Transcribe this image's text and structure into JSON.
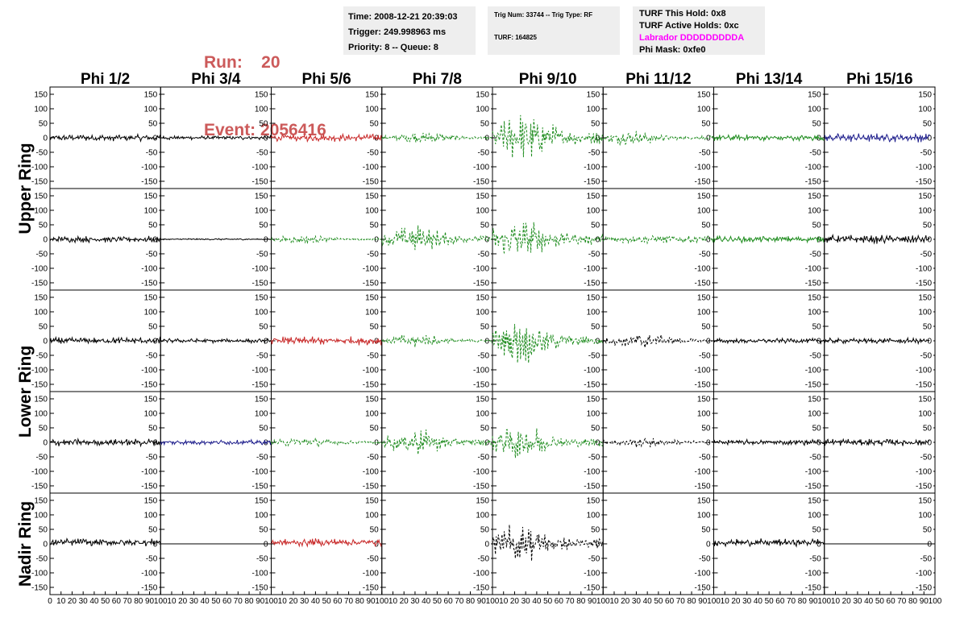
{
  "header": {
    "run_line": "Run:    20",
    "event_line": "Event: 2056416",
    "time_line": "Time: 2008-12-21 20:39:03",
    "trigger_line": "Trigger: 249.998963 ms",
    "priority_line": "Priority: 8 -- Queue: 8",
    "trig_line": "Trig Num: 33744 -- Trig Type: RF",
    "turf_line": "TURF: 164825",
    "turf_hold_line": "TURF This Hold: 0x8",
    "turf_active_line": "TURF Active Holds: 0xc",
    "labrador_line": "Labrador DDDDDDDDDA",
    "phi_mask_line": "Phi Mask: 0xfe0",
    "run_color": "#cc5a5a",
    "labrador_color": "#ff00ff"
  },
  "chart_data": {
    "type": "line",
    "columns": [
      "Phi 1/2",
      "Phi 3/4",
      "Phi 5/6",
      "Phi 7/8",
      "Phi 9/10",
      "Phi 11/12",
      "Phi 13/14",
      "Phi 15/16"
    ],
    "rows": [
      "Upper Ring",
      "Upper Ring",
      "Lower Ring",
      "Lower Ring",
      "Nadir Ring"
    ],
    "row_labels": [
      {
        "text": "Upper Ring",
        "rows": [
          0,
          1
        ]
      },
      {
        "text": "Lower Ring",
        "rows": [
          2,
          3
        ]
      },
      {
        "text": "Nadir Ring",
        "rows": [
          4,
          4
        ]
      }
    ],
    "ylim": [
      -175,
      175
    ],
    "yticks": [
      -150,
      -100,
      -50,
      0,
      50,
      100,
      150
    ],
    "xlim": [
      0,
      100
    ],
    "xticks": [
      0,
      10,
      20,
      30,
      40,
      50,
      60,
      70,
      80,
      90,
      100
    ],
    "grid": false,
    "colors": {
      "black": "#000000",
      "red": "#c82828",
      "green": "#1e8c1e",
      "blue": "#1e1e8c"
    },
    "panels": [
      [
        {
          "color": "black",
          "style": "solid",
          "amp": 12,
          "profile": "flat"
        },
        {
          "color": "black",
          "style": "solid",
          "amp": 8,
          "profile": "flat"
        },
        {
          "color": "red",
          "style": "solid",
          "amp": 14,
          "profile": "flat"
        },
        {
          "color": "green",
          "style": "dashed",
          "amp": 24,
          "profile": "pulse",
          "center": 40
        },
        {
          "color": "green",
          "style": "dashed",
          "amp": 95,
          "profile": "pulse",
          "center": 30
        },
        {
          "color": "green",
          "style": "dashed",
          "amp": 30,
          "profile": "pulse",
          "center": 25
        },
        {
          "color": "green",
          "style": "solid",
          "amp": 12,
          "profile": "flat"
        },
        {
          "color": "blue",
          "style": "solid",
          "amp": 16,
          "profile": "flat",
          "xmax": 95
        }
      ],
      [
        {
          "color": "black",
          "style": "solid",
          "amp": 12,
          "profile": "flat"
        },
        {
          "color": "black",
          "style": "solid",
          "amp": 3,
          "profile": "flat"
        },
        {
          "color": "green",
          "style": "dashed",
          "amp": 16,
          "profile": "pulse",
          "center": 30
        },
        {
          "color": "green",
          "style": "dashed",
          "amp": 55,
          "profile": "pulse",
          "center": 30
        },
        {
          "color": "green",
          "style": "dashed",
          "amp": 80,
          "profile": "pulse",
          "center": 25
        },
        {
          "color": "green",
          "style": "dashed",
          "amp": 14,
          "profile": "flat"
        },
        {
          "color": "green",
          "style": "solid",
          "amp": 12,
          "profile": "flat"
        },
        {
          "color": "black",
          "style": "solid",
          "amp": 16,
          "profile": "flat",
          "xmax": 95
        }
      ],
      [
        {
          "color": "black",
          "style": "solid",
          "amp": 13,
          "profile": "flat"
        },
        {
          "color": "black",
          "style": "solid",
          "amp": 8,
          "profile": "flat"
        },
        {
          "color": "red",
          "style": "solid",
          "amp": 16,
          "profile": "flat"
        },
        {
          "color": "green",
          "style": "dashed",
          "amp": 28,
          "profile": "pulse",
          "center": 30
        },
        {
          "color": "green",
          "style": "dashed",
          "amp": 85,
          "profile": "pulse",
          "center": 25
        },
        {
          "color": "black",
          "style": "dashed",
          "amp": 32,
          "profile": "pulse",
          "center": 35
        },
        {
          "color": "black",
          "style": "solid",
          "amp": 9,
          "profile": "flat"
        },
        {
          "color": "black",
          "style": "solid",
          "amp": 10,
          "profile": "flat",
          "xmax": 95
        }
      ],
      [
        {
          "color": "black",
          "style": "solid",
          "amp": 14,
          "profile": "flat"
        },
        {
          "color": "blue",
          "style": "solid",
          "amp": 9,
          "profile": "flat"
        },
        {
          "color": "green",
          "style": "dashed",
          "amp": 20,
          "profile": "pulse",
          "center": 30
        },
        {
          "color": "green",
          "style": "dashed",
          "amp": 50,
          "profile": "pulse",
          "center": 30
        },
        {
          "color": "green",
          "style": "dashed",
          "amp": 70,
          "profile": "pulse",
          "center": 25
        },
        {
          "color": "black",
          "style": "dashed",
          "amp": 20,
          "profile": "pulse",
          "center": 35
        },
        {
          "color": "black",
          "style": "solid",
          "amp": 10,
          "profile": "flat"
        },
        {
          "color": "black",
          "style": "solid",
          "amp": 13,
          "profile": "flat",
          "xmax": 95
        }
      ],
      [
        {
          "color": "black",
          "style": "solid",
          "amp": 14,
          "profile": "flat",
          "offset": 5
        },
        {
          "color": "black",
          "style": "flatline"
        },
        {
          "color": "red",
          "style": "solid",
          "amp": 14,
          "profile": "flat",
          "offset": 5
        },
        {
          "color": "none",
          "style": "empty"
        },
        {
          "color": "black",
          "style": "dashed",
          "amp": 80,
          "profile": "pulse",
          "center": 25
        },
        {
          "color": "none",
          "style": "empty"
        },
        {
          "color": "black",
          "style": "solid",
          "amp": 14,
          "profile": "flat",
          "offset": 5
        },
        {
          "color": "black",
          "style": "flatline"
        }
      ]
    ]
  }
}
